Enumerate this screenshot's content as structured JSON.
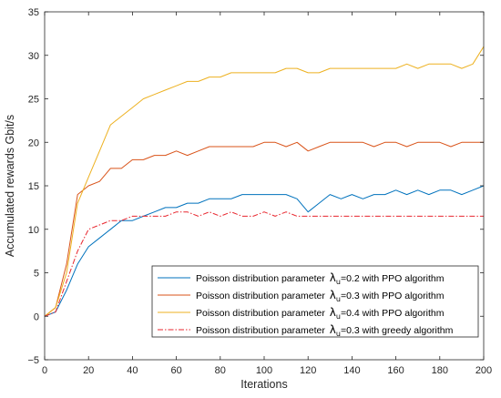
{
  "chart_data": {
    "type": "line",
    "xlabel": "Iterations",
    "ylabel": "Accumulated rewards Gbit/s",
    "xlim": [
      0,
      200
    ],
    "ylim": [
      -5,
      35
    ],
    "x_ticks": [
      0,
      20,
      40,
      60,
      80,
      100,
      120,
      140,
      160,
      180,
      200
    ],
    "y_ticks": [
      -5,
      0,
      5,
      10,
      15,
      20,
      25,
      30,
      35
    ],
    "grid": false,
    "legend_position": "bottom-right",
    "x": [
      0,
      5,
      10,
      15,
      20,
      25,
      30,
      35,
      40,
      45,
      50,
      55,
      60,
      65,
      70,
      75,
      80,
      85,
      90,
      95,
      100,
      105,
      110,
      115,
      120,
      125,
      130,
      135,
      140,
      145,
      150,
      155,
      160,
      165,
      170,
      175,
      180,
      185,
      190,
      195,
      200
    ],
    "series": [
      {
        "legend_prefix": "Poisson distribution parameter",
        "lambda_symbol": "λ",
        "lambda_subscript": "u",
        "legend_suffix": "=0.2 with PPO algorithm",
        "color": "#0072BD",
        "dash": "solid",
        "values": [
          0,
          0.5,
          3,
          6,
          8,
          9,
          10,
          11,
          11,
          11.5,
          12,
          12.5,
          12.5,
          13,
          13,
          13.5,
          13.5,
          13.5,
          14,
          14,
          14,
          14,
          14,
          13.5,
          12,
          13,
          14,
          13.5,
          14,
          13.5,
          14,
          14,
          14.5,
          14,
          14.5,
          14,
          14.5,
          14.5,
          14,
          14.5,
          15
        ]
      },
      {
        "legend_prefix": "Poisson distribution parameter",
        "lambda_symbol": "λ",
        "lambda_subscript": "u",
        "legend_suffix": "=0.3 with PPO algorithm",
        "color": "#D95319",
        "dash": "solid",
        "values": [
          0,
          1,
          6,
          14,
          15,
          15.5,
          17,
          17,
          18,
          18,
          18.5,
          18.5,
          19,
          18.5,
          19,
          19.5,
          19.5,
          19.5,
          19.5,
          19.5,
          20,
          20,
          19.5,
          20,
          19,
          19.5,
          20,
          20,
          20,
          20,
          19.5,
          20,
          20,
          19.5,
          20,
          20,
          20,
          19.5,
          20,
          20,
          20
        ]
      },
      {
        "legend_prefix": "Poisson distribution parameter",
        "lambda_symbol": "λ",
        "lambda_subscript": "u",
        "legend_suffix": "=0.4 with PPO algorithm",
        "color": "#EDB120",
        "dash": "solid",
        "values": [
          0,
          1,
          5,
          13,
          16,
          19,
          22,
          23,
          24,
          25,
          25.5,
          26,
          26.5,
          27,
          27,
          27.5,
          27.5,
          28,
          28,
          28,
          28,
          28,
          28.5,
          28.5,
          28,
          28,
          28.5,
          28.5,
          28.5,
          28.5,
          28.5,
          28.5,
          28.5,
          29,
          28.5,
          29,
          29,
          29,
          28.5,
          29,
          31
        ]
      },
      {
        "legend_prefix": "Poisson distribution parameter",
        "lambda_symbol": "λ",
        "lambda_subscript": "u",
        "legend_suffix": "=0.3 with greedy algorithm",
        "color": "#E8262E",
        "dash": "dashdot",
        "values": [
          0,
          0.5,
          4,
          7.5,
          10,
          10.5,
          11,
          11,
          11.5,
          11.5,
          11.5,
          11.5,
          12,
          12,
          11.5,
          12,
          11.5,
          12,
          11.5,
          11.5,
          12,
          11.5,
          12,
          11.5,
          11.5,
          11.5,
          11.5,
          11.5,
          11.5,
          11.5,
          11.5,
          11.5,
          11.5,
          11.5,
          11.5,
          11.5,
          11.5,
          11.5,
          11.5,
          11.5,
          11.5
        ]
      }
    ]
  }
}
